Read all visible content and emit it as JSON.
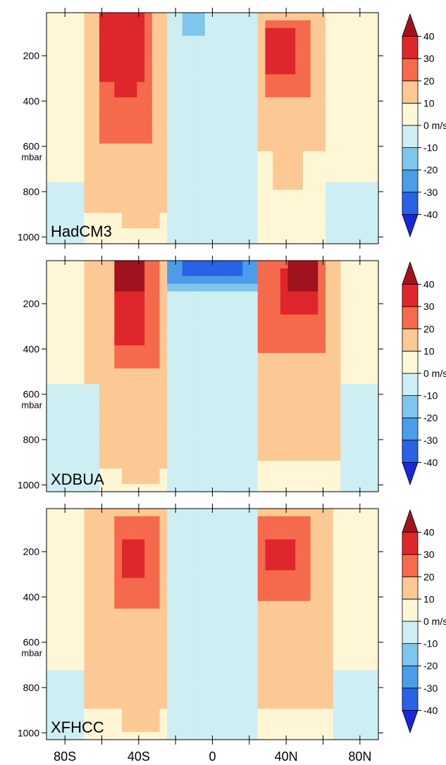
{
  "chart_data": {
    "type": "heatmap",
    "x": {
      "range": [
        -90,
        90
      ],
      "ticks": [
        -80,
        -60,
        -40,
        -20,
        0,
        20,
        40,
        60,
        80
      ],
      "tick_labels": [
        "80S",
        "",
        "40S",
        "",
        "0",
        "",
        "40N",
        "",
        "80N"
      ]
    },
    "y": {
      "range": [
        10,
        1030
      ],
      "reversed": true,
      "ticks": [
        200,
        400,
        600,
        800,
        1000
      ],
      "tick_labels": [
        "200",
        "400",
        "600",
        "800",
        "1000"
      ],
      "unit_label": "mbar"
    },
    "colorbar": {
      "levels": [
        -40,
        -30,
        -20,
        -10,
        0,
        10,
        20,
        30,
        40
      ],
      "labels": [
        "-40",
        "-30",
        "-20",
        "-10",
        "0 m/s",
        "10",
        "20",
        "30",
        "40"
      ],
      "colors": [
        "#1b27d6",
        "#2a62e6",
        "#4b9de9",
        "#7fc6ed",
        "#cdeff3",
        "#fff6d6",
        "#fcc995",
        "#f56a4c",
        "#e0262d",
        "#a0121e"
      ],
      "extend": "both"
    },
    "panels": [
      {
        "name": "HadCM3",
        "blobs": [
          {
            "value": 15,
            "lat": [
              -68,
              -25
            ],
            "p": [
              20,
              900
            ]
          },
          {
            "value": 15,
            "lat": [
              -50,
              -28
            ],
            "p": [
              20,
              970
            ]
          },
          {
            "value": 25,
            "lat": [
              -60,
              -33
            ],
            "p": [
              20,
              600
            ]
          },
          {
            "value": 35,
            "lat": [
              -60,
              -38
            ],
            "p": [
              20,
              300
            ]
          },
          {
            "value": 35,
            "lat": [
              -52,
              -40
            ],
            "p": [
              20,
              400
            ]
          },
          {
            "value": 15,
            "lat": [
              25,
              62
            ],
            "p": [
              20,
              630
            ]
          },
          {
            "value": 15,
            "lat": [
              32,
              50
            ],
            "p": [
              20,
              780
            ]
          },
          {
            "value": 25,
            "lat": [
              27,
              52
            ],
            "p": [
              30,
              370
            ]
          },
          {
            "value": 35,
            "lat": [
              30,
              45
            ],
            "p": [
              80,
              280
            ]
          },
          {
            "value": -5,
            "lat": [
              -90,
              -68
            ],
            "p": [
              760,
              1030
            ]
          },
          {
            "value": -5,
            "lat": [
              -25,
              25
            ],
            "p": [
              20,
              1030
            ]
          },
          {
            "value": -5,
            "lat": [
              62,
              90
            ],
            "p": [
              750,
              1030
            ]
          },
          {
            "value": -15,
            "lat": [
              -15,
              -5
            ],
            "p": [
              20,
              100
            ]
          }
        ]
      },
      {
        "name": "XDBUA",
        "blobs": [
          {
            "value": 15,
            "lat": [
              -68,
              -25
            ],
            "p": [
              20,
              930
            ]
          },
          {
            "value": 15,
            "lat": [
              -48,
              -28
            ],
            "p": [
              20,
              1000
            ]
          },
          {
            "value": 25,
            "lat": [
              -55,
              -28
            ],
            "p": [
              20,
              500
            ]
          },
          {
            "value": 35,
            "lat": [
              -55,
              -35
            ],
            "p": [
              20,
              370
            ]
          },
          {
            "value": 45,
            "lat": [
              -52,
              -35
            ],
            "p": [
              20,
              160
            ]
          },
          {
            "value": 15,
            "lat": [
              25,
              68
            ],
            "p": [
              20,
              880
            ]
          },
          {
            "value": 25,
            "lat": [
              25,
              60
            ],
            "p": [
              20,
              420
            ]
          },
          {
            "value": 35,
            "lat": [
              35,
              58
            ],
            "p": [
              40,
              250
            ]
          },
          {
            "value": 45,
            "lat": [
              40,
              58
            ],
            "p": [
              20,
              130
            ]
          },
          {
            "value": -5,
            "lat": [
              -90,
              -60
            ],
            "p": [
              560,
              1030
            ]
          },
          {
            "value": -5,
            "lat": [
              -25,
              25
            ],
            "p": [
              20,
              1030
            ]
          },
          {
            "value": -5,
            "lat": [
              68,
              90
            ],
            "p": [
              560,
              1030
            ]
          },
          {
            "value": -15,
            "lat": [
              -25,
              25
            ],
            "p": [
              20,
              150
            ]
          },
          {
            "value": -25,
            "lat": [
              -25,
              25
            ],
            "p": [
              20,
              110
            ]
          },
          {
            "value": -35,
            "lat": [
              -15,
              18
            ],
            "p": [
              20,
              80
            ]
          }
        ]
      },
      {
        "name": "XFHCC",
        "blobs": [
          {
            "value": 15,
            "lat": [
              -68,
              -25
            ],
            "p": [
              20,
              900
            ]
          },
          {
            "value": 15,
            "lat": [
              -50,
              -28
            ],
            "p": [
              20,
              1000
            ]
          },
          {
            "value": 25,
            "lat": [
              -55,
              -30
            ],
            "p": [
              30,
              450
            ]
          },
          {
            "value": 35,
            "lat": [
              -48,
              -35
            ],
            "p": [
              130,
              320
            ]
          },
          {
            "value": 15,
            "lat": [
              25,
              65
            ],
            "p": [
              20,
              890
            ]
          },
          {
            "value": 25,
            "lat": [
              25,
              55
            ],
            "p": [
              30,
              420
            ]
          },
          {
            "value": 35,
            "lat": [
              30,
              45
            ],
            "p": [
              130,
              280
            ]
          },
          {
            "value": -5,
            "lat": [
              -90,
              -68
            ],
            "p": [
              730,
              1030
            ]
          },
          {
            "value": -5,
            "lat": [
              -25,
              25
            ],
            "p": [
              20,
              1030
            ]
          },
          {
            "value": -5,
            "lat": [
              65,
              90
            ],
            "p": [
              730,
              1030
            ]
          }
        ]
      }
    ]
  }
}
